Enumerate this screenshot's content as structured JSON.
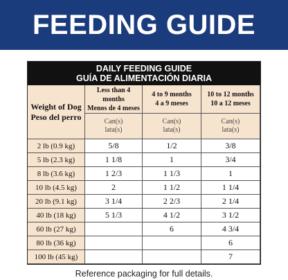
{
  "banner": {
    "title": "FEEDING GUIDE"
  },
  "table": {
    "title_en": "DAILY FEEDING GUIDE",
    "title_es": "GUÍA DE ALIMENTACIÓN DIARIA",
    "row_header_en": "Weight of Dog",
    "row_header_es": "Peso del perro",
    "columns": [
      {
        "age_en": "Less than 4 months",
        "age_es": "Menos de 4 meses",
        "unit_en": "Can(s)",
        "unit_es": "lata(s)"
      },
      {
        "age_en": "4 to 9 months",
        "age_es": "4 a 9 meses",
        "unit_en": "Can(s)",
        "unit_es": "lata(s)"
      },
      {
        "age_en": "10 to 12 months",
        "age_es": "10 a 12 meses",
        "unit_en": "Can(s)",
        "unit_es": "lata(s)"
      }
    ],
    "rows": [
      [
        "2 lb (0.9 kg)",
        "5/8",
        "1/2",
        "3/8"
      ],
      [
        "5 lb (2.3 kg)",
        "1 1/8",
        "1",
        "3/4"
      ],
      [
        "8 lb (3.6 kg)",
        "1 2/3",
        "1 1/3",
        "1"
      ],
      [
        "10 lb (4.5 kg)",
        "2",
        "1 1/2",
        "1 1/4"
      ],
      [
        "20 lb (9.1 kg)",
        "3 1/4",
        "2 2/3",
        "2 1/4"
      ],
      [
        "40 lb (18 kg)",
        "5 1/3",
        "4 1/2",
        "3 1/2"
      ],
      [
        "60 lb (27 kg)",
        null,
        "6",
        "4 3/4"
      ],
      [
        "80 lb (36 kg)",
        null,
        null,
        "6"
      ],
      [
        "100 lb (45 kg)",
        null,
        null,
        "7"
      ]
    ]
  },
  "footer": {
    "note": "Reference packaging for full details."
  }
}
